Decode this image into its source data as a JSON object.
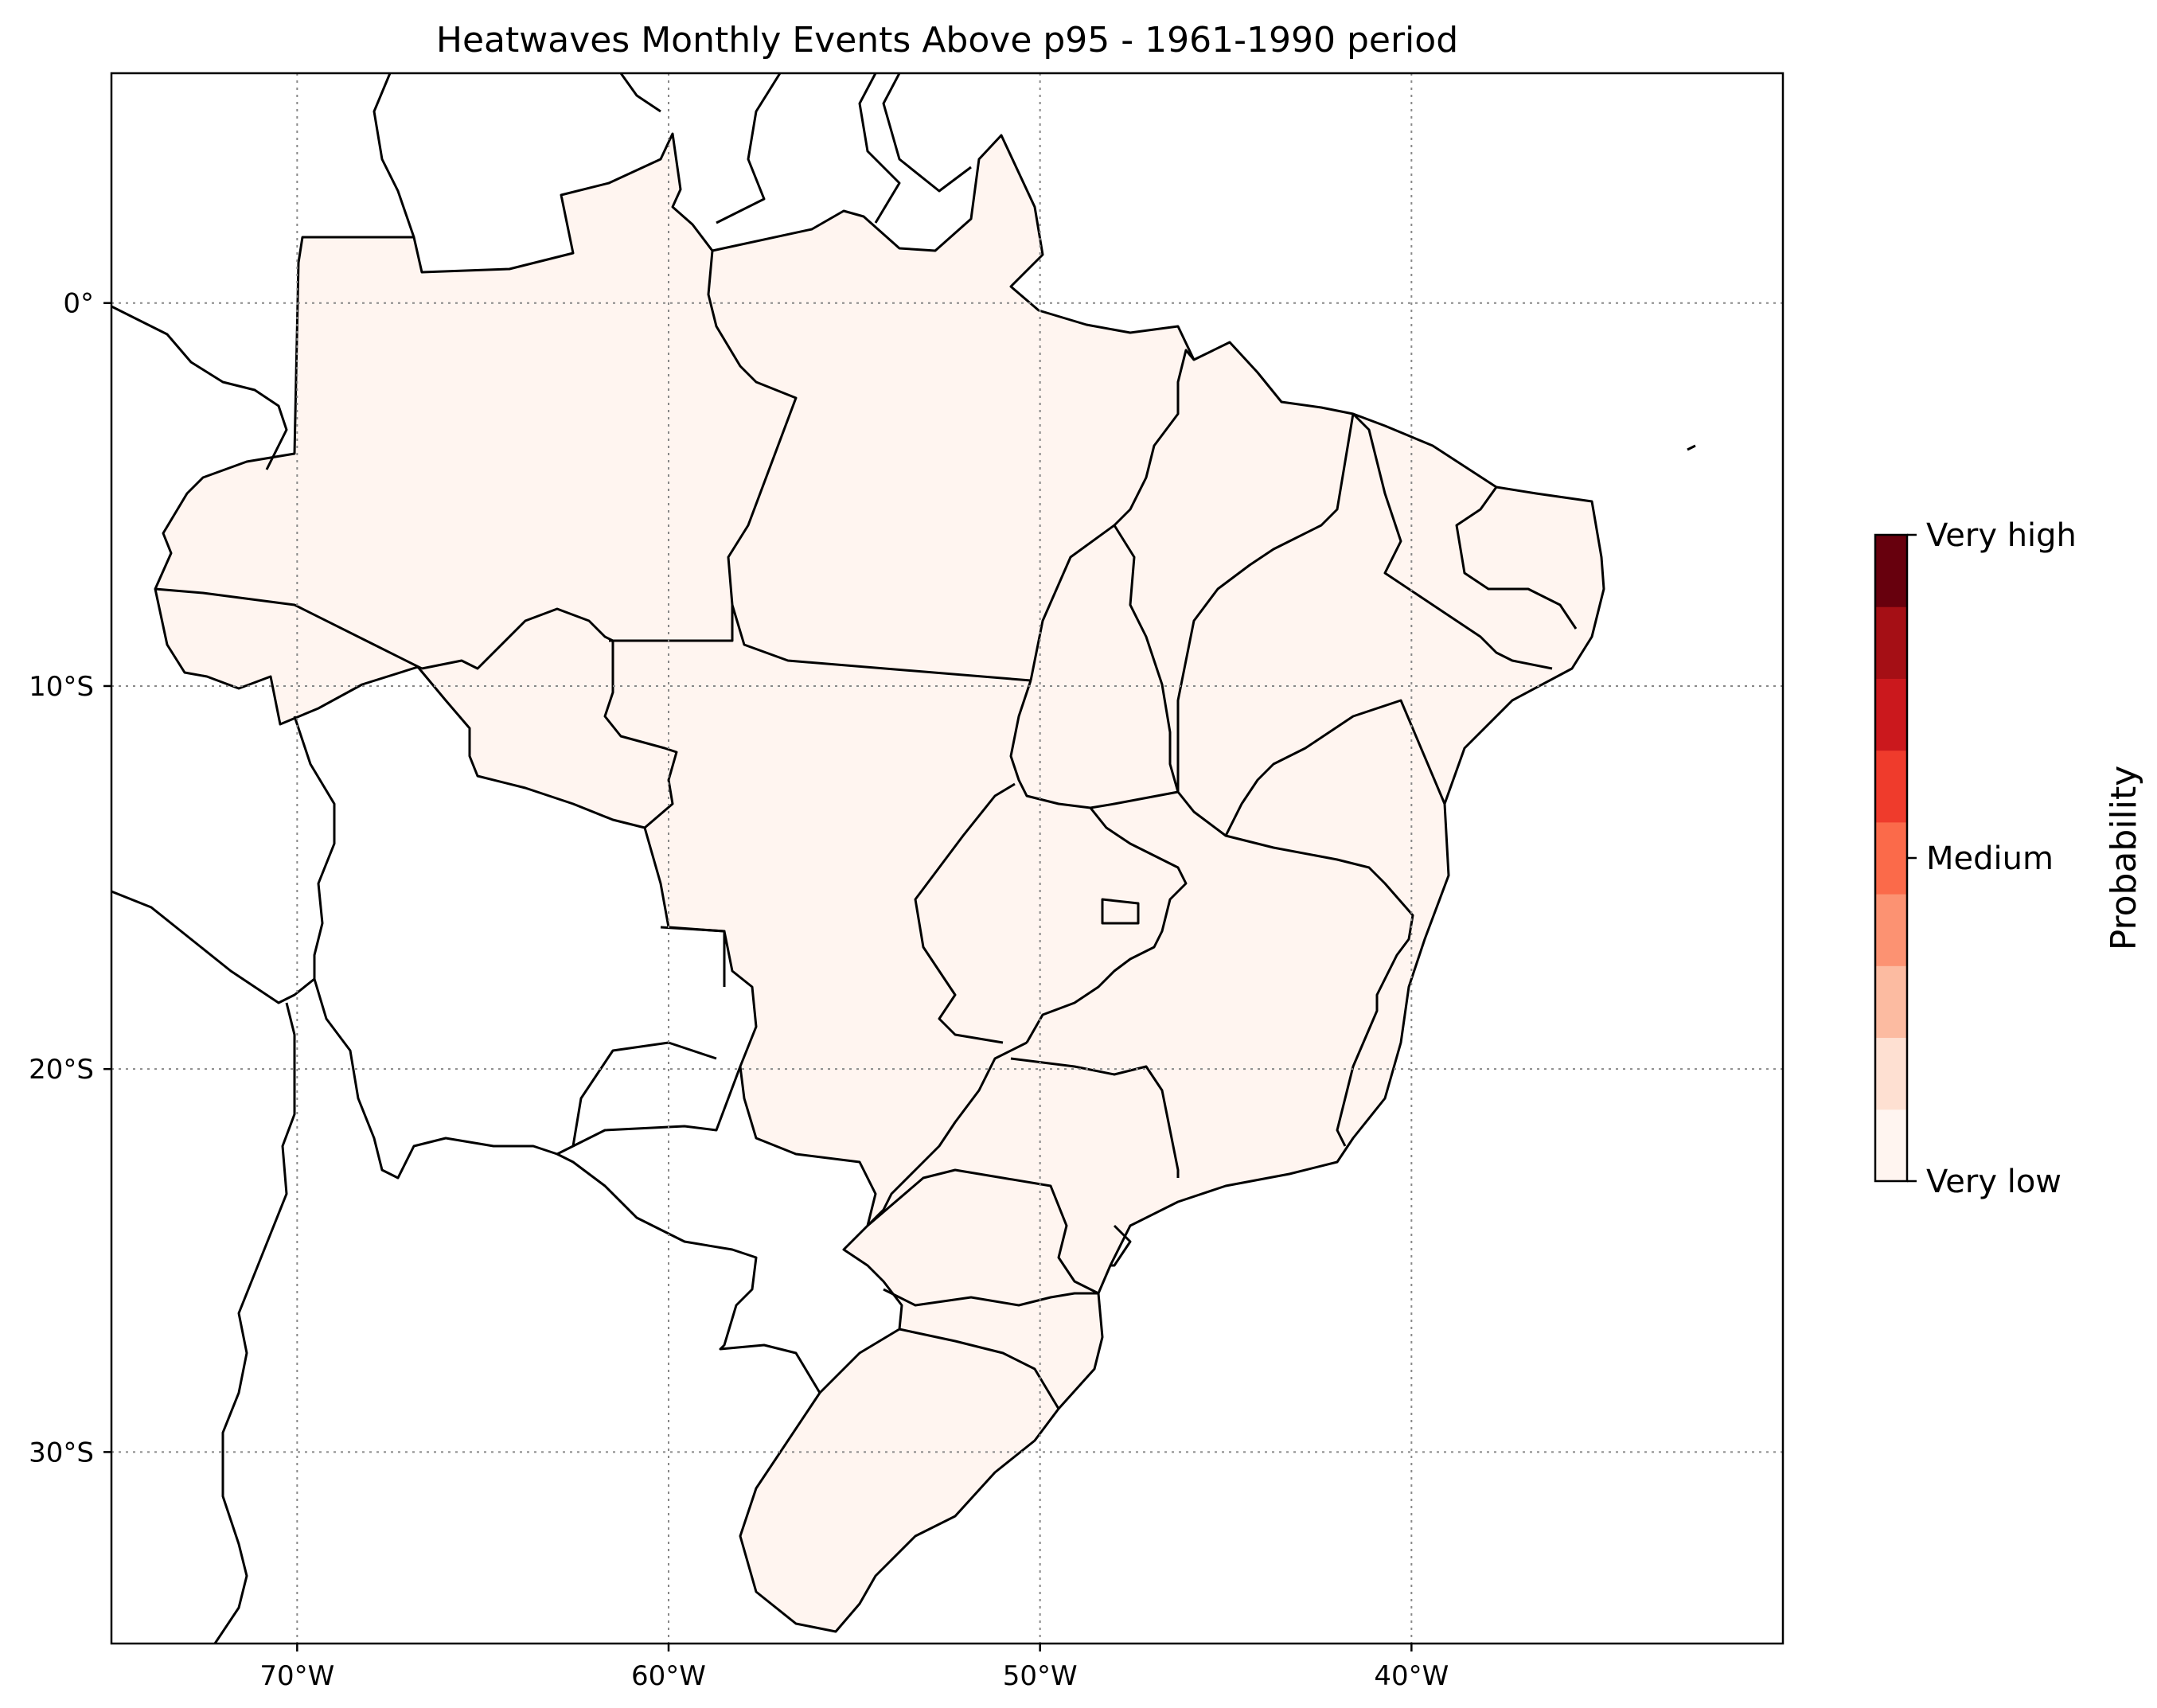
{
  "title": "Heatwaves Monthly Events Above p95 - 1961-1990 period",
  "map": {
    "lon_range": [
      -75,
      -30
    ],
    "lat_range": [
      -35,
      6
    ],
    "gridlines": true,
    "fill_color": "#fff5f0",
    "land_border_color": "#000000",
    "lon_ticks": [
      {
        "value": -70,
        "label": "70°W"
      },
      {
        "value": -60,
        "label": "60°W"
      },
      {
        "value": -50,
        "label": "50°W"
      },
      {
        "value": -40,
        "label": "40°W"
      }
    ],
    "lat_ticks": [
      {
        "value": 0,
        "label": "0°"
      },
      {
        "value": -10,
        "label": "10°S"
      },
      {
        "value": -20,
        "label": "20°S"
      },
      {
        "value": -30,
        "label": "30°S"
      }
    ]
  },
  "colorbar": {
    "label": "Probability",
    "levels": [
      "#fff5f0",
      "#fee0d2",
      "#fcbba1",
      "#fc9272",
      "#fb6a4a",
      "#ef3b2c",
      "#cb181d",
      "#a50f15",
      "#67000d"
    ],
    "ticks": [
      {
        "fraction": 1.0,
        "label": "Very high"
      },
      {
        "fraction": 0.5,
        "label": "Medium"
      },
      {
        "fraction": 0.0,
        "label": "Very low"
      }
    ]
  },
  "chart_data": {
    "type": "heatmap",
    "title": "Heatwaves Monthly Events Above p95 - 1961-1990 period",
    "region": "Brazil",
    "xlim": [
      -75,
      -30
    ],
    "ylim": [
      -35,
      6
    ],
    "colorbar_label": "Probability",
    "colorbar_ticks": [
      "Very low",
      "Medium",
      "Very high"
    ],
    "value": "Very low",
    "grid": true
  }
}
